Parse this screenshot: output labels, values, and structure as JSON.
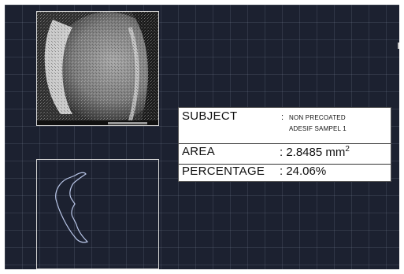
{
  "info_table": {
    "subject": {
      "label": "SUBJECT",
      "colon": ":",
      "value_line1": "NON PRECOATED",
      "value_line2": "ADESIF SAMPEL 1"
    },
    "area": {
      "label": "AREA",
      "value": ": 2.8485 mm",
      "unit_superscript": "2"
    },
    "percentage": {
      "label": "PERCENTAGE",
      "value": ": 24.06%"
    }
  },
  "colors": {
    "canvas_background": "#1c2130",
    "frame_border": "#d9d9d9",
    "trace_outline": "#b9c6e8",
    "table_background": "#ffffff"
  }
}
